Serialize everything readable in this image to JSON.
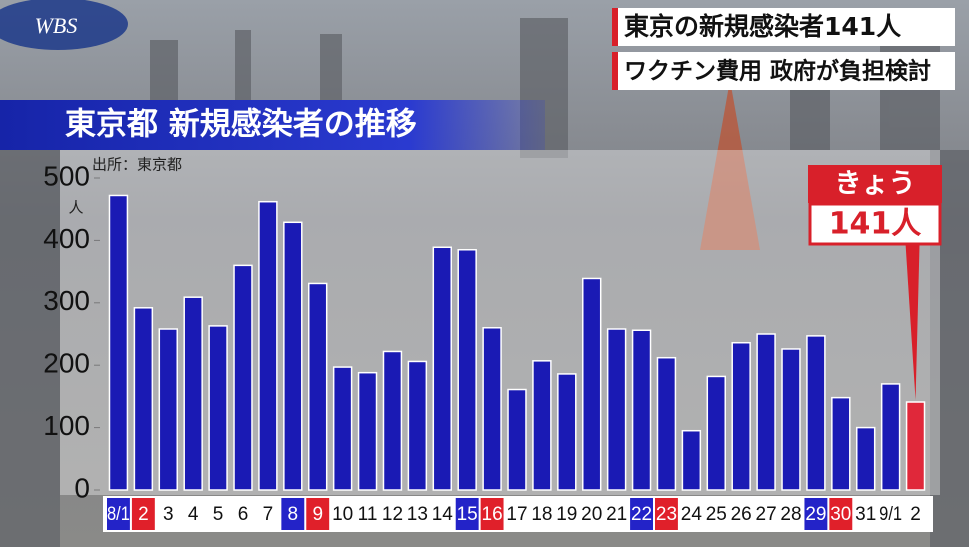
{
  "logo": "WBS",
  "headline": {
    "line1": "東京の新規感染者141人",
    "line2": "ワクチン費用 政府が負担検討"
  },
  "chart_data": {
    "type": "bar",
    "title": "東京都 新規感染者の推移",
    "source": "出所：東京都",
    "y_unit": "人",
    "categories": [
      "8/1",
      "2",
      "3",
      "4",
      "5",
      "6",
      "7",
      "8",
      "9",
      "10",
      "11",
      "12",
      "13",
      "14",
      "15",
      "16",
      "17",
      "18",
      "19",
      "20",
      "21",
      "22",
      "23",
      "24",
      "25",
      "26",
      "27",
      "28",
      "29",
      "30",
      "31",
      "9/1",
      "2"
    ],
    "values": [
      472,
      292,
      258,
      309,
      263,
      360,
      462,
      429,
      331,
      197,
      188,
      222,
      206,
      389,
      385,
      260,
      161,
      207,
      186,
      339,
      258,
      256,
      212,
      95,
      182,
      236,
      250,
      226,
      247,
      148,
      100,
      170,
      141
    ],
    "colors": [
      "#1a1ab4",
      "#1a1ab4",
      "#1a1ab4",
      "#1a1ab4",
      "#1a1ab4",
      "#1a1ab4",
      "#1a1ab4",
      "#1a1ab4",
      "#1a1ab4",
      "#1a1ab4",
      "#1a1ab4",
      "#1a1ab4",
      "#1a1ab4",
      "#1a1ab4",
      "#1a1ab4",
      "#1a1ab4",
      "#1a1ab4",
      "#1a1ab4",
      "#1a1ab4",
      "#1a1ab4",
      "#1a1ab4",
      "#1a1ab4",
      "#1a1ab4",
      "#1a1ab4",
      "#1a1ab4",
      "#1a1ab4",
      "#1a1ab4",
      "#1a1ab4",
      "#1a1ab4",
      "#1a1ab4",
      "#1a1ab4",
      "#1a1ab4",
      "#e0283a"
    ],
    "category_label_colors": [
      "#2323c8",
      "#e0202a",
      null,
      null,
      null,
      null,
      null,
      "#2323c8",
      "#e0202a",
      null,
      null,
      null,
      null,
      null,
      "#2323c8",
      "#e0202a",
      null,
      null,
      null,
      null,
      null,
      "#2323c8",
      "#e0202a",
      null,
      null,
      null,
      null,
      null,
      "#2323c8",
      "#e0202a",
      null,
      null,
      null
    ],
    "ylim": [
      0,
      500
    ],
    "yticks": [
      0,
      100,
      200,
      300,
      400,
      500
    ],
    "callout": {
      "title": "きょう",
      "label": "141人"
    }
  }
}
